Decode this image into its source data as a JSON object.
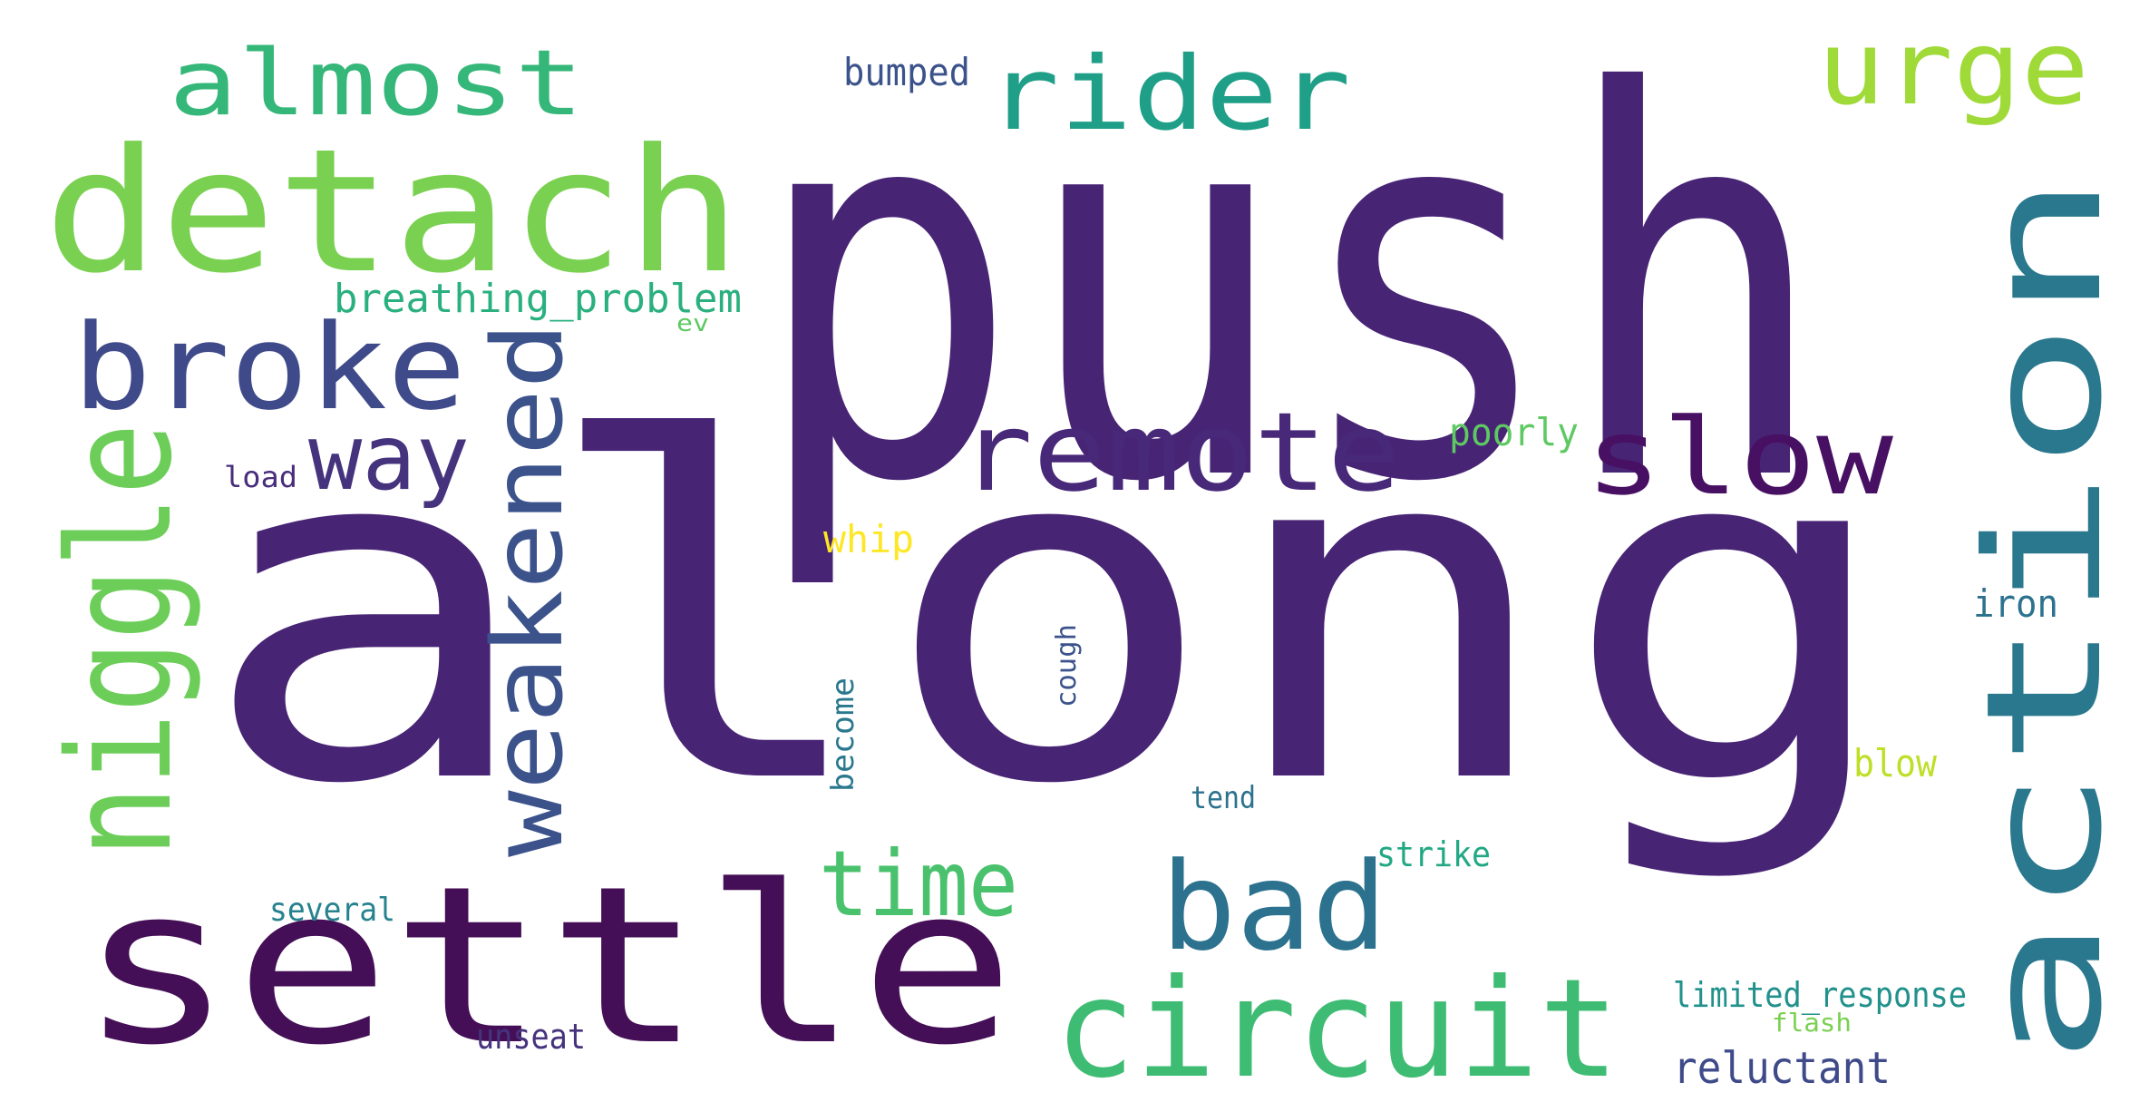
{
  "word_cloud": {
    "words": [
      {
        "text": "along",
        "color": "#482475"
      },
      {
        "text": "push",
        "color": "#482475"
      },
      {
        "text": "action",
        "color": "#2A788E"
      },
      {
        "text": "settle",
        "color": "#440F56"
      },
      {
        "text": "detach",
        "color": "#7AD151"
      },
      {
        "text": "circuit",
        "color": "#3FBC73"
      },
      {
        "text": "almost",
        "color": "#35B779"
      },
      {
        "text": "rider",
        "color": "#1F9F88"
      },
      {
        "text": "urge",
        "color": "#A0DA39"
      },
      {
        "text": "broke",
        "color": "#3E4A89"
      },
      {
        "text": "remote",
        "color": "#482878"
      },
      {
        "text": "slow",
        "color": "#471063"
      },
      {
        "text": "bad",
        "color": "#2C728E"
      },
      {
        "text": "niggle",
        "color": "#6CCE59"
      },
      {
        "text": "weakened",
        "color": "#3B528B"
      },
      {
        "text": "way",
        "color": "#46337E"
      },
      {
        "text": "time",
        "color": "#4AC16D"
      },
      {
        "text": "breathing_problem",
        "color": "#2AB07F"
      },
      {
        "text": "bumped",
        "color": "#3B528B"
      },
      {
        "text": "ev",
        "color": "#5EC962"
      },
      {
        "text": "load",
        "color": "#472D7B"
      },
      {
        "text": "poorly",
        "color": "#5EC962"
      },
      {
        "text": "whip",
        "color": "#FDE725"
      },
      {
        "text": "iron",
        "color": "#2C728E"
      },
      {
        "text": "cough",
        "color": "#3B528B"
      },
      {
        "text": "become",
        "color": "#2A788E"
      },
      {
        "text": "blow",
        "color": "#BDDF26"
      },
      {
        "text": "tend",
        "color": "#2C728E"
      },
      {
        "text": "strike",
        "color": "#22A884"
      },
      {
        "text": "several",
        "color": "#26828E"
      },
      {
        "text": "limited_response",
        "color": "#21918C"
      },
      {
        "text": "flash",
        "color": "#7AD151"
      },
      {
        "text": "unseat",
        "color": "#46337E"
      },
      {
        "text": "reluctant",
        "color": "#3E4A89"
      }
    ]
  }
}
